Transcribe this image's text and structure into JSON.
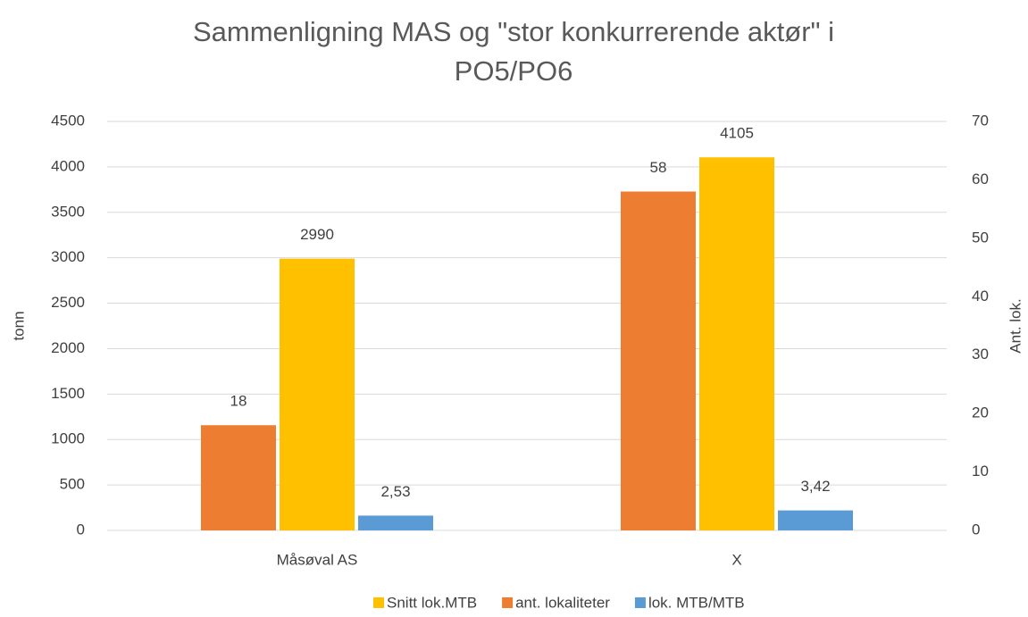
{
  "chart_data": {
    "type": "bar",
    "title": "Sammenligning MAS og \"stor konkurrerende aktør\" i PO5/PO6",
    "categories": [
      "Måsøval AS",
      "X"
    ],
    "series": [
      {
        "name": "Snitt lok.MTB",
        "color": "#ffc000",
        "values": [
          2990,
          4105
        ]
      },
      {
        "name": "ant. lokaliteter",
        "color": "#ed7d31",
        "values": [
          18,
          58
        ],
        "axis": "y2"
      },
      {
        "name": "lok. MTB/MTB",
        "color": "#5b9bd5",
        "values": [
          2.53,
          3.42
        ],
        "value_labels": [
          "2,53",
          "3,42"
        ],
        "axis": "y2"
      }
    ],
    "ylabel": "tonn",
    "y2label": "Ant. lok.",
    "ylim": [
      0,
      4500
    ],
    "yticks": [
      0,
      500,
      1000,
      1500,
      2000,
      2500,
      3000,
      3500,
      4000,
      4500
    ],
    "y2lim": [
      0,
      70
    ],
    "y2ticks": [
      0,
      10,
      20,
      30,
      40,
      50,
      60,
      70
    ],
    "grid": true,
    "legend": "bottom"
  }
}
